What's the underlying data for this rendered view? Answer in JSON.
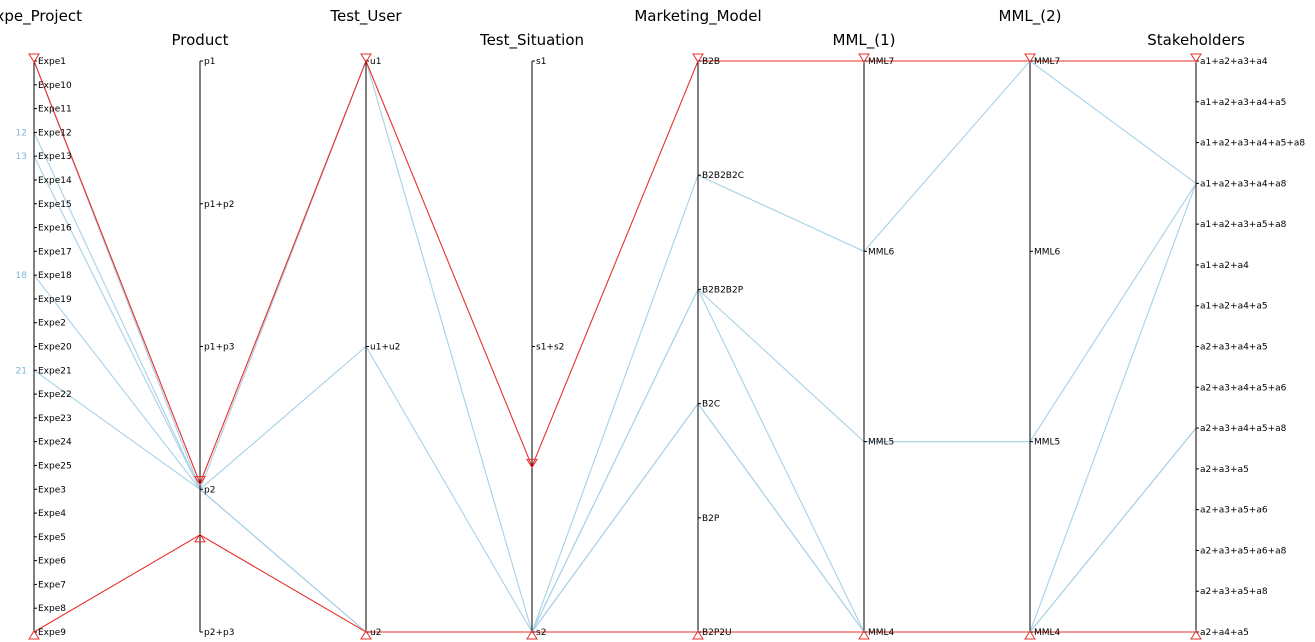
{
  "chart_data": {
    "type": "parallel_coordinates",
    "colors": {
      "selected": "#e8302a",
      "other": "#a8d1e6",
      "axis": "#000000",
      "side_label": "#7fb6d6"
    },
    "axes": [
      {
        "name": "Expe_Project",
        "categories": [
          "Expe1",
          "Expe10",
          "Expe11",
          "Expe12",
          "Expe13",
          "Expe14",
          "Expe15",
          "Expe16",
          "Expe17",
          "Expe18",
          "Expe19",
          "Expe2",
          "Expe20",
          "Expe21",
          "Expe22",
          "Expe23",
          "Expe24",
          "Expe25",
          "Expe3",
          "Expe4",
          "Expe5",
          "Expe6",
          "Expe7",
          "Expe8",
          "Expe9"
        ],
        "filter": [
          "Expe1",
          "Expe9"
        ]
      },
      {
        "name": "Product",
        "categories": [
          "p1",
          "p1+p2",
          "p1+p3",
          "p2",
          "p2+p3"
        ],
        "filter": [
          "Product@0.74",
          "Product@0.83"
        ]
      },
      {
        "name": "Test_User",
        "categories": [
          "u1",
          "u1+u2",
          "u2"
        ],
        "filter": [
          "u1",
          "u2"
        ]
      },
      {
        "name": "Test_Situation",
        "categories": [
          "s1",
          "s1+s2",
          "s2"
        ],
        "filter": [
          "Test_Situation@0.71",
          "s2"
        ]
      },
      {
        "name": "Marketing_Model",
        "categories": [
          "B2B",
          "B2B2B2C",
          "B2B2B2P",
          "B2C",
          "B2P",
          "B2P2U"
        ],
        "filter": [
          "B2B",
          "B2P2U"
        ]
      },
      {
        "name": "MML_(1)",
        "categories": [
          "MML7",
          "MML6",
          "MML5",
          "MML4"
        ],
        "filter": [
          "MML7",
          "MML4"
        ]
      },
      {
        "name": "MML_(2)",
        "categories": [
          "MML7",
          "MML6",
          "MML5",
          "MML4"
        ],
        "filter": [
          "MML7",
          "MML4"
        ]
      },
      {
        "name": "Stakeholders",
        "categories": [
          "a1+a2+a3+a4",
          "a1+a2+a3+a4+a5",
          "a1+a2+a3+a4+a5+a8",
          "a1+a2+a3+a4+a8",
          "a1+a2+a3+a5+a8",
          "a1+a2+a4",
          "a1+a2+a4+a5",
          "a2+a3+a4+a5",
          "a2+a3+a4+a5+a6",
          "a2+a3+a4+a5+a8",
          "a2+a3+a5",
          "a2+a3+a5+a6",
          "a2+a3+a5+a6+a8",
          "a2+a3+a5+a8",
          "a2+a4+a5"
        ],
        "filter": [
          "a1+a2+a3+a4",
          "a2+a4+a5"
        ]
      }
    ],
    "side_labels": [
      {
        "text": "12",
        "axis": "Expe_Project",
        "value": "Expe12"
      },
      {
        "text": "13",
        "axis": "Expe_Project",
        "value": "Expe13"
      },
      {
        "text": "18",
        "axis": "Expe_Project",
        "value": "Expe18"
      },
      {
        "text": "21",
        "axis": "Expe_Project",
        "value": "Expe21"
      }
    ],
    "polylines": [
      {
        "selected": true,
        "values": [
          "Expe1",
          "Product@0.74",
          "u1",
          "Test_Situation@0.71",
          "B2B",
          "MML7",
          "MML7",
          "a1+a2+a3+a4"
        ]
      },
      {
        "selected": true,
        "values": [
          "Expe9",
          "Product@0.83",
          "u2",
          "s2",
          "B2P2U",
          "MML4",
          "MML4",
          "a2+a4+a5"
        ]
      },
      {
        "selected": false,
        "values": [
          "Expe12",
          "p2",
          "u1",
          "s2",
          "B2B2B2C",
          "MML6",
          "MML7",
          "a1+a2+a3+a4+a8"
        ]
      },
      {
        "selected": false,
        "values": [
          "Expe13",
          "p2",
          "u2",
          "s2",
          "B2B2B2P",
          "MML5",
          "MML5",
          "a1+a2+a3+a4+a8"
        ]
      },
      {
        "selected": false,
        "values": [
          "Expe18",
          "p2",
          "u1+u2",
          "s2",
          "B2B2B2P",
          "MML4",
          "MML4",
          "a1+a2+a3+a4+a8"
        ]
      },
      {
        "selected": false,
        "values": [
          "Expe21",
          "p2",
          "u2",
          "s2",
          "B2C",
          "MML4",
          "MML4",
          "a2+a3+a4+a5+a8"
        ]
      },
      {
        "selected": false,
        "values": [
          "Expe1",
          "p2",
          "u2",
          "s2",
          "B2C",
          "MML4",
          "MML4",
          "a2+a3+a4+a5+a8"
        ]
      }
    ]
  }
}
